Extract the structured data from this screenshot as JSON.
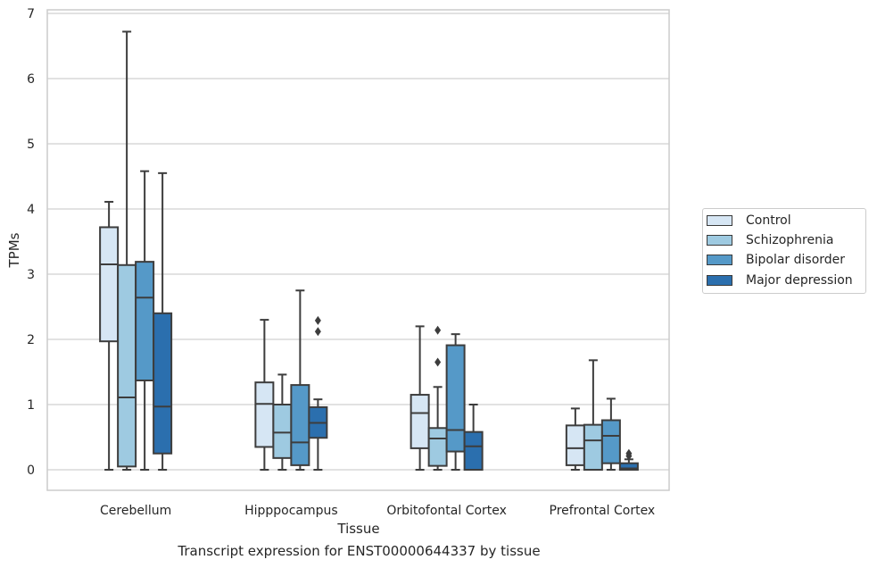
{
  "chart_data": {
    "type": "box",
    "title": "",
    "caption": "Transcript expression for ENST00000644337 by tissue",
    "xlabel": "Tissue",
    "ylabel": "TPMs",
    "ylim": [
      -0.32,
      7.1
    ],
    "yticks": [
      0,
      1,
      2,
      3,
      4,
      5,
      6,
      7
    ],
    "grid": "horizontal",
    "legend_position": "right",
    "categories": [
      "Cerebellum",
      "Hipppocampus",
      "Orbitofontal Cortex",
      "Prefrontal Cortex"
    ],
    "series": [
      {
        "name": "Control",
        "color": "#d6e6f4",
        "boxes": [
          {
            "whisker_low": 0.0,
            "q1": 1.97,
            "median": 3.15,
            "q3": 3.72,
            "whisker_high": 4.11,
            "outliers": []
          },
          {
            "whisker_low": 0.0,
            "q1": 0.35,
            "median": 1.01,
            "q3": 1.34,
            "whisker_high": 2.3,
            "outliers": []
          },
          {
            "whisker_low": 0.0,
            "q1": 0.33,
            "median": 0.87,
            "q3": 1.15,
            "whisker_high": 2.2,
            "outliers": []
          },
          {
            "whisker_low": 0.0,
            "q1": 0.07,
            "median": 0.33,
            "q3": 0.68,
            "whisker_high": 0.94,
            "outliers": []
          }
        ]
      },
      {
        "name": "Schizophrenia",
        "color": "#9ecae1",
        "boxes": [
          {
            "whisker_low": 0.0,
            "q1": 0.05,
            "median": 1.11,
            "q3": 3.14,
            "whisker_high": 6.72,
            "outliers": []
          },
          {
            "whisker_low": 0.0,
            "q1": 0.18,
            "median": 0.57,
            "q3": 1.0,
            "whisker_high": 1.46,
            "outliers": []
          },
          {
            "whisker_low": 0.0,
            "q1": 0.06,
            "median": 0.48,
            "q3": 0.64,
            "whisker_high": 1.27,
            "outliers": [
              1.65,
              2.14
            ]
          },
          {
            "whisker_low": 0.0,
            "q1": 0.0,
            "median": 0.45,
            "q3": 0.69,
            "whisker_high": 1.68,
            "outliers": []
          }
        ]
      },
      {
        "name": "Bipolar disorder",
        "color": "#5599c8",
        "boxes": [
          {
            "whisker_low": 0.0,
            "q1": 1.37,
            "median": 2.64,
            "q3": 3.19,
            "whisker_high": 4.58,
            "outliers": []
          },
          {
            "whisker_low": 0.0,
            "q1": 0.07,
            "median": 0.42,
            "q3": 1.3,
            "whisker_high": 2.75,
            "outliers": []
          },
          {
            "whisker_low": 0.0,
            "q1": 0.28,
            "median": 0.61,
            "q3": 1.91,
            "whisker_high": 2.08,
            "outliers": []
          },
          {
            "whisker_low": 0.0,
            "q1": 0.1,
            "median": 0.52,
            "q3": 0.76,
            "whisker_high": 1.09,
            "outliers": []
          }
        ]
      },
      {
        "name": "Major depression",
        "color": "#2b6fae",
        "boxes": [
          {
            "whisker_low": 0.0,
            "q1": 0.25,
            "median": 0.97,
            "q3": 2.4,
            "whisker_high": 4.55,
            "outliers": []
          },
          {
            "whisker_low": 0.0,
            "q1": 0.49,
            "median": 0.72,
            "q3": 0.96,
            "whisker_high": 1.08,
            "outliers": [
              2.12,
              2.29
            ]
          },
          {
            "whisker_low": 0.0,
            "q1": 0.0,
            "median": 0.36,
            "q3": 0.58,
            "whisker_high": 1.0,
            "outliers": []
          },
          {
            "whisker_low": 0.0,
            "q1": 0.0,
            "median": 0.02,
            "q3": 0.1,
            "whisker_high": 0.16,
            "outliers": [
              0.21,
              0.25
            ]
          }
        ]
      }
    ]
  }
}
